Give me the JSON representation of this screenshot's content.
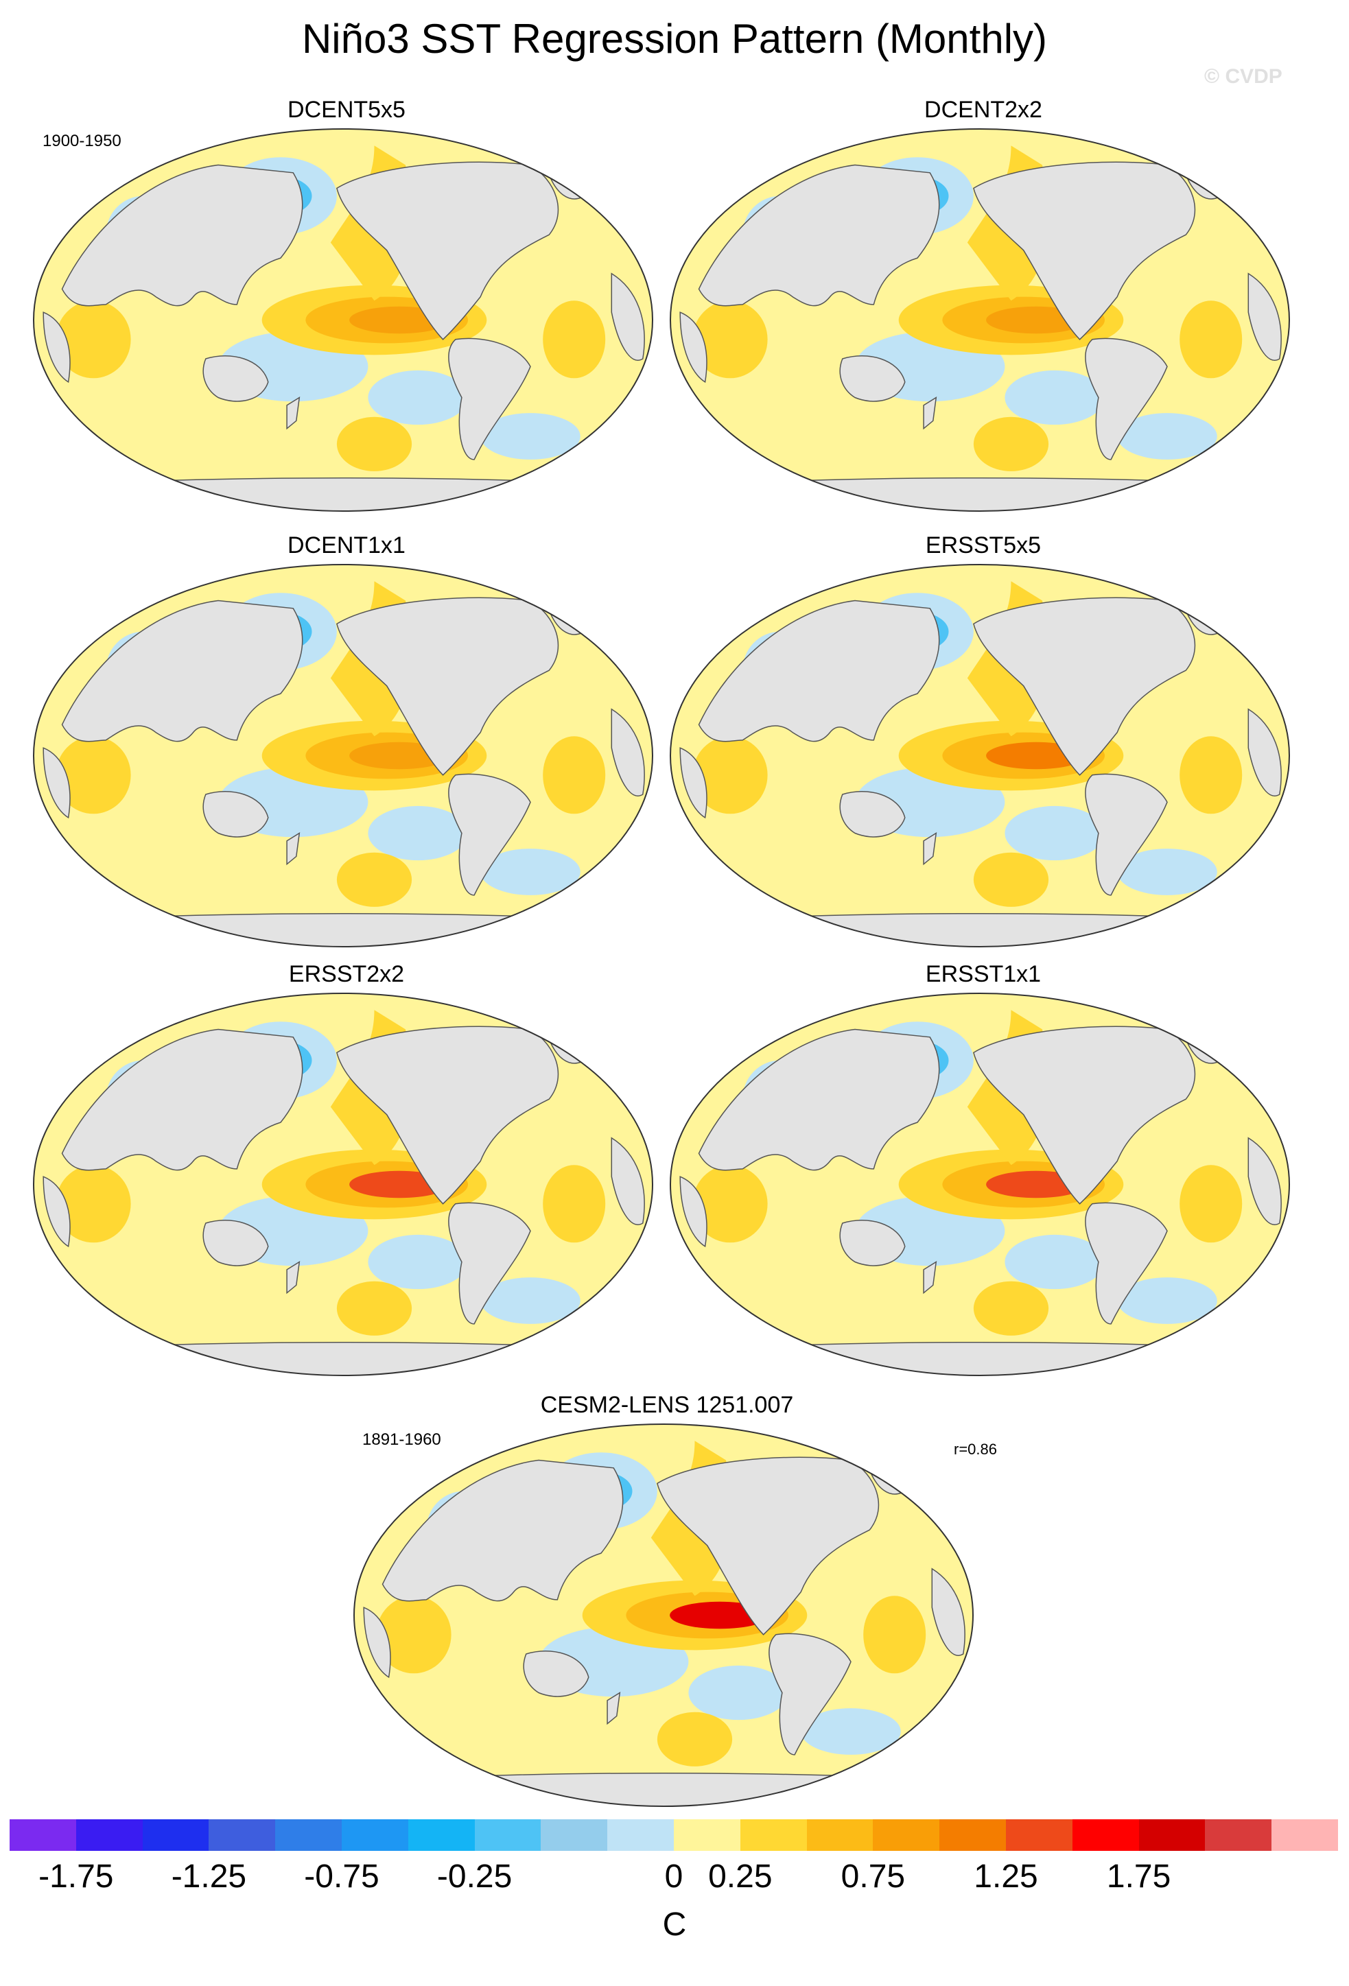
{
  "title": "Niño3 SST Regression Pattern (Monthly)",
  "copyright": "© CVDP",
  "period_obs": "1900-1950",
  "period_model": "1891-1960",
  "correlation": "r=0.86",
  "panels": [
    {
      "name": "DCENT5x5",
      "peak_color": "#f7a10b"
    },
    {
      "name": "DCENT2x2",
      "peak_color": "#f7a10b"
    },
    {
      "name": "DCENT1x1",
      "peak_color": "#f7a10b"
    },
    {
      "name": "ERSST5x5",
      "peak_color": "#f47d00"
    },
    {
      "name": "ERSST2x2",
      "peak_color": "#ee4a1a"
    },
    {
      "name": "ERSST1x1",
      "peak_color": "#ee4a1a"
    },
    {
      "name": "CESM2-LENS 1251.007",
      "peak_color": "#e60000"
    }
  ],
  "colorbar": {
    "units": "C",
    "colors": [
      "#7b2af0",
      "#3a1cf2",
      "#1e2fef",
      "#3e5ede",
      "#2f7ee8",
      "#1e97f3",
      "#14b4f5",
      "#4ec3f5",
      "#94cdec",
      "#bfe3f6",
      "#fff59a",
      "#ffd833",
      "#fcbb16",
      "#f99e07",
      "#f47d00",
      "#ee4a1a",
      "#ff0000",
      "#d40000",
      "#d93b3b",
      "#ffb4b4"
    ],
    "labels": [
      "-1.75",
      "-1.25",
      "-0.75",
      "-0.25",
      "0",
      "0.25",
      "0.75",
      "1.25",
      "1.75"
    ]
  }
}
